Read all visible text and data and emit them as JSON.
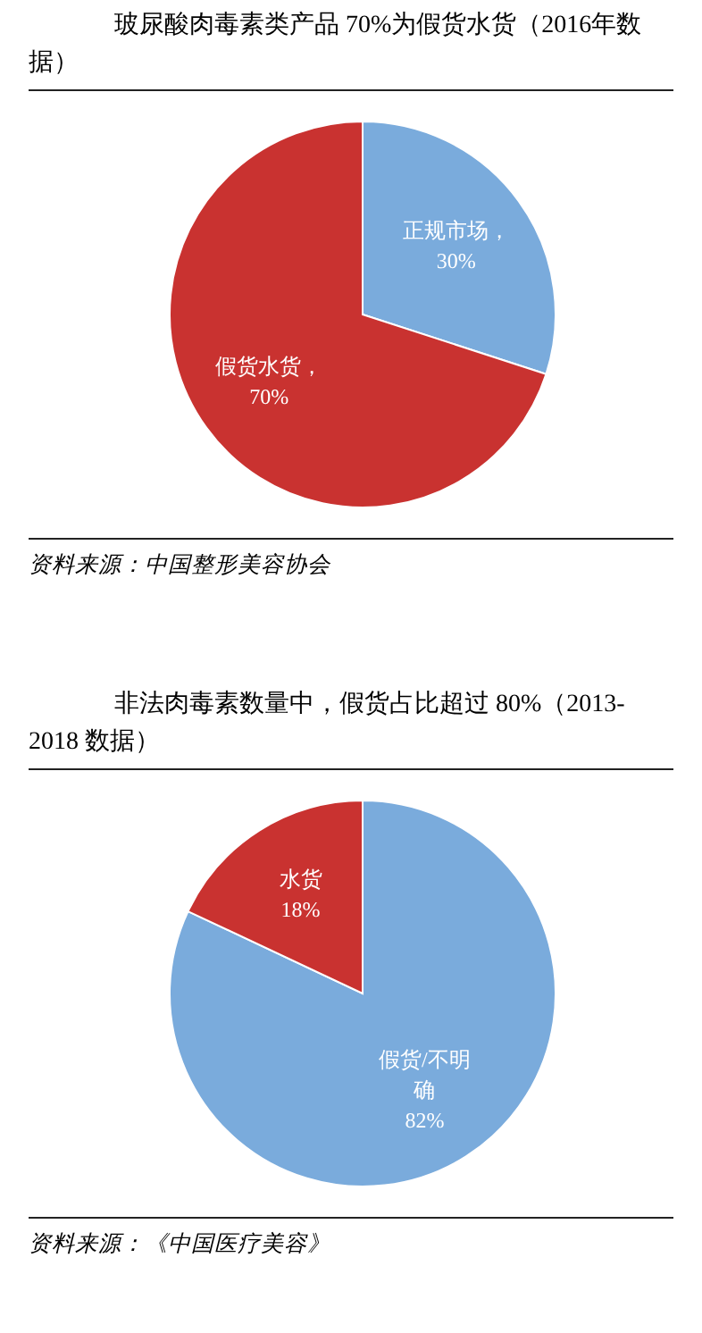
{
  "chart_data": [
    {
      "type": "pie",
      "title": "玻尿酸肉毒素类产品 70%为假货水货（2016年数据）",
      "categories": [
        "正规市场",
        "假货水货"
      ],
      "values": [
        30,
        70
      ],
      "colors": [
        "#7aabdc",
        "#c93230"
      ],
      "value_labels": [
        "，30%",
        "，70%"
      ],
      "annotations": [
        "资料来源：中国整形美容协会"
      ]
    },
    {
      "type": "pie",
      "title": "非法肉毒素数量中，假货占比超过 80%（2013-2018 数据）",
      "categories": [
        "假货/不明确",
        "水货"
      ],
      "values": [
        82,
        18
      ],
      "colors": [
        "#7aabdc",
        "#c93230"
      ],
      "value_labels": [
        "82%",
        "18%"
      ],
      "annotations": [
        "资料来源：《中国医疗美容》"
      ]
    }
  ]
}
